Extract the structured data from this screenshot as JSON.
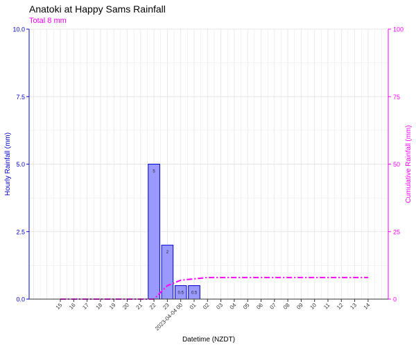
{
  "header": {
    "title": "Anatoki at Happy Sams Rainfall",
    "subtitle": "Total 8 mm"
  },
  "colors": {
    "left_axis": "#0000cc",
    "right_axis": "#ff00ff",
    "bar_fill": "#9999ff",
    "bar_stroke": "#0000cc",
    "cumulative_line": "#ff00ff",
    "grid": "#e5e5e5"
  },
  "chart_data": {
    "type": "bar",
    "title": "Anatoki at Happy Sams Rainfall",
    "subtitle": "Total 8 mm",
    "xlabel": "Datetime (NZDT)",
    "ylabel": "Hourly Rainfall (mm)",
    "y2label": "Cumulative Rainfall (mm)",
    "categories": [
      "15",
      "16",
      "17",
      "18",
      "19",
      "20",
      "21",
      "22",
      "23",
      "2023-04-04 00",
      "01",
      "02",
      "03",
      "04",
      "05",
      "06",
      "07",
      "08",
      "09",
      "10",
      "11",
      "12",
      "13",
      "14"
    ],
    "series": [
      {
        "type": "bar",
        "axis": "left",
        "values": [
          0,
          0,
          0,
          0,
          0,
          0,
          0,
          5,
          2,
          0.5,
          0.5,
          0,
          0,
          0,
          0,
          0,
          0,
          0,
          0,
          0,
          0,
          0,
          0,
          0
        ],
        "labels": [
          "",
          "",
          "",
          "",
          "",
          "",
          "",
          "5",
          "2",
          "0.5",
          "0.5",
          "",
          "",
          "",
          "",
          "",
          "",
          "",
          "",
          "",
          "",
          "",
          "",
          ""
        ]
      },
      {
        "type": "line",
        "axis": "right",
        "style": "dashdot",
        "values": [
          0,
          0,
          0,
          0,
          0,
          0,
          0,
          0,
          5,
          7,
          7.5,
          8,
          8,
          8,
          8,
          8,
          8,
          8,
          8,
          8,
          8,
          8,
          8,
          8
        ]
      }
    ],
    "ylim": [
      0,
      10
    ],
    "y2lim": [
      0,
      100
    ],
    "yticks": [
      "0.0",
      "2.5",
      "5.0",
      "7.5",
      "10.0"
    ],
    "y2ticks": [
      "0",
      "25",
      "50",
      "75",
      "100"
    ],
    "grid": true
  }
}
